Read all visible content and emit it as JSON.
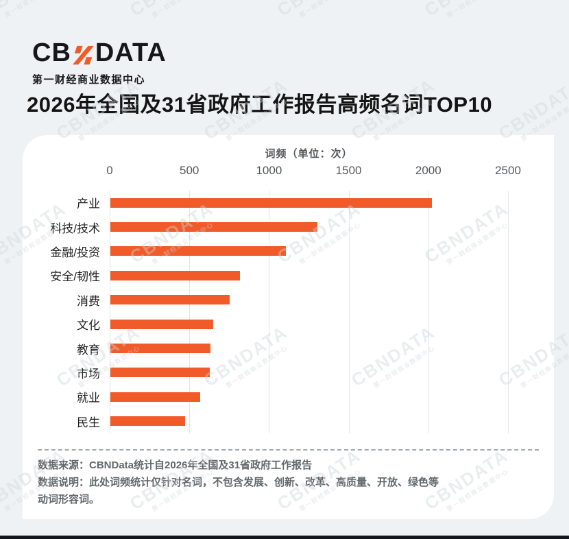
{
  "logo": {
    "part1": "CB",
    "n_glyph": "N",
    "part2": "DATA",
    "subtitle": "第一财经商业数据中心",
    "accent_color": "#F15A29"
  },
  "page_title": "2026年全国及31省政府工作报告高频名词TOP10",
  "watermark": {
    "text": "CBNDATA",
    "subtext": "第一财经商业数据中心"
  },
  "chart_data": {
    "type": "bar",
    "orientation": "horizontal",
    "title": "词频（单位：次）",
    "categories": [
      "产业",
      "科技/技术",
      "金融/投资",
      "安全/韧性",
      "消费",
      "文化",
      "教育",
      "市场",
      "就业",
      "民生"
    ],
    "values": [
      2020,
      1300,
      1100,
      815,
      750,
      645,
      630,
      625,
      565,
      470
    ],
    "xlabel": "词频（单位：次）",
    "ylabel": "",
    "xlim": [
      0,
      2500
    ],
    "xticks": [
      0,
      500,
      1000,
      1500,
      2000,
      2500
    ],
    "grid": "vertical",
    "legend": "none",
    "bar_color": "#F15A29"
  },
  "footer": {
    "source": "数据来源：CBNData统计自2026年全国及31省政府工作报告",
    "note_line1": "数据说明：此处词频统计仅针对名词，不包含发展、创新、改革、高质量、开放、绿色等",
    "note_line2": "动词形容词。"
  },
  "colors": {
    "background": "#eff2f4",
    "card": "#ffffff",
    "bar": "#F15A29",
    "text_dark": "#141414",
    "text_gray": "#55585b",
    "footer_gray": "#63676a",
    "gridline": "#e3e5e7",
    "bottom_bar": "#13161d"
  }
}
